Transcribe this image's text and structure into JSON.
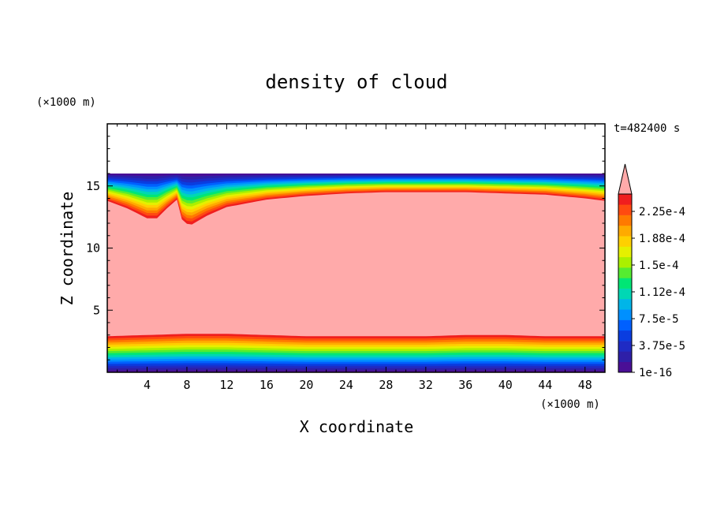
{
  "chart_data": {
    "type": "heatmap",
    "title": "density of cloud",
    "xlabel": "X coordinate",
    "ylabel": "Z coordinate",
    "x_unit": "(×1000 m)",
    "y_unit": "(×1000 m)",
    "time_label": "t=482400 s",
    "xlim": [
      0,
      50
    ],
    "ylim": [
      0,
      20
    ],
    "x_ticks": [
      4,
      8,
      12,
      16,
      20,
      24,
      28,
      32,
      36,
      40,
      44,
      48
    ],
    "y_ticks": [
      5,
      10,
      15
    ],
    "colorbar": {
      "tick_labels": [
        "2.25e-4",
        "1.88e-4",
        "1.5e-4",
        "1.12e-4",
        "7.5e-5",
        "3.75e-5",
        "1e-16"
      ],
      "tick_values": [
        0.000225,
        0.000188,
        0.00015,
        0.000112,
        7.5e-05,
        3.75e-05,
        1e-16
      ],
      "max_color": "#ffaaaa",
      "levels": [
        "#4a0f96",
        "#2e1fa8",
        "#1f2bc4",
        "#0a3de0",
        "#0060ff",
        "#0090ff",
        "#00b5e8",
        "#00d7b4",
        "#00e675",
        "#55ec30",
        "#aaf000",
        "#e5f000",
        "#ffd000",
        "#ffaa00",
        "#ff7a00",
        "#ff4a10",
        "#f01e1e"
      ]
    },
    "field": {
      "cloud_top_z": 16,
      "upper_boundary_z": [
        [
          0,
          13.8
        ],
        [
          2,
          13.2
        ],
        [
          4,
          12.4
        ],
        [
          5,
          12.4
        ],
        [
          6,
          13.2
        ],
        [
          7,
          13.9
        ],
        [
          7.6,
          12.0
        ],
        [
          8.5,
          11.9
        ],
        [
          10,
          12.6
        ],
        [
          12,
          13.3
        ],
        [
          16,
          13.9
        ],
        [
          20,
          14.2
        ],
        [
          24,
          14.4
        ],
        [
          28,
          14.5
        ],
        [
          32,
          14.5
        ],
        [
          36,
          14.5
        ],
        [
          40,
          14.4
        ],
        [
          44,
          14.3
        ],
        [
          48,
          14.0
        ],
        [
          50,
          13.8
        ]
      ],
      "lower_boundary_z": [
        [
          0,
          2.9
        ],
        [
          4,
          3.0
        ],
        [
          8,
          3.1
        ],
        [
          12,
          3.1
        ],
        [
          16,
          3.0
        ],
        [
          20,
          2.9
        ],
        [
          24,
          2.9
        ],
        [
          28,
          2.9
        ],
        [
          32,
          2.9
        ],
        [
          36,
          3.0
        ],
        [
          40,
          3.0
        ],
        [
          44,
          2.9
        ],
        [
          48,
          2.9
        ],
        [
          50,
          2.9
        ]
      ]
    }
  }
}
